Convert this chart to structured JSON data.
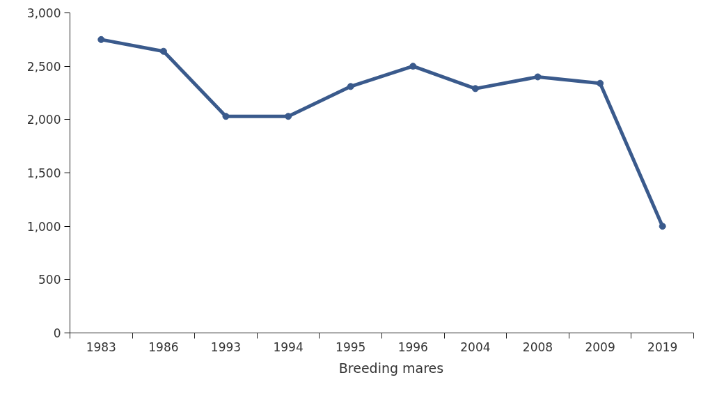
{
  "chart_data": {
    "type": "line",
    "categories": [
      "1983",
      "1986",
      "1993",
      "1994",
      "1995",
      "1996",
      "2004",
      "2008",
      "2009",
      "2019"
    ],
    "series": [
      {
        "name": "Breeding mares",
        "color": "#3a5a8c",
        "values": [
          2750,
          2640,
          2030,
          2030,
          2310,
          2500,
          2290,
          2400,
          2340,
          1000
        ]
      }
    ],
    "ylim": [
      0,
      3000
    ],
    "yticks": [
      {
        "value": 0,
        "label": "0"
      },
      {
        "value": 500,
        "label": "500"
      },
      {
        "value": 1000,
        "label": "1,000"
      },
      {
        "value": 1500,
        "label": "1,500"
      },
      {
        "value": 2000,
        "label": "2,000"
      },
      {
        "value": 2500,
        "label": "2,500"
      },
      {
        "value": 3000,
        "label": "3,000"
      }
    ],
    "grid": false,
    "legend": "bottom",
    "marker": "circle",
    "line_style": "solid"
  }
}
